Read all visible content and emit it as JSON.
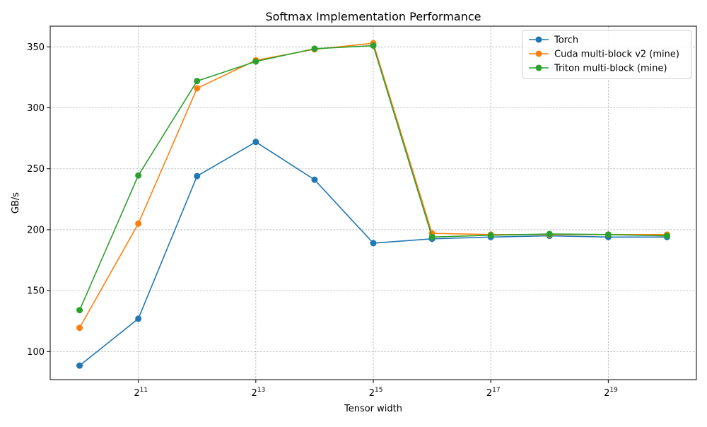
{
  "chart_data": {
    "type": "line",
    "title": "Softmax Implementation Performance",
    "xlabel": "Tensor width",
    "ylabel": "GB/s",
    "x_scale": "log2",
    "x": [
      1024,
      2048,
      4096,
      8192,
      16384,
      32768,
      65536,
      131072,
      262144,
      524288,
      1048576
    ],
    "xlim": [
      724,
      1482910
    ],
    "ylim": [
      77,
      367
    ],
    "x_ticks": [
      {
        "value": 2048,
        "base": "2",
        "exp": "11"
      },
      {
        "value": 8192,
        "base": "2",
        "exp": "13"
      },
      {
        "value": 32768,
        "base": "2",
        "exp": "15"
      },
      {
        "value": 131072,
        "base": "2",
        "exp": "17"
      },
      {
        "value": 524288,
        "base": "2",
        "exp": "19"
      }
    ],
    "y_ticks": [
      {
        "value": 100,
        "label": "100"
      },
      {
        "value": 150,
        "label": "150"
      },
      {
        "value": 200,
        "label": "200"
      },
      {
        "value": 250,
        "label": "250"
      },
      {
        "value": 300,
        "label": "300"
      },
      {
        "value": 350,
        "label": "350"
      }
    ],
    "grid": true,
    "legend_position": "top-right",
    "series": [
      {
        "name": "Torch",
        "color": "#1f77b4",
        "values": [
          88.5,
          127,
          244,
          272,
          241,
          189,
          192.5,
          194,
          195,
          194,
          194
        ]
      },
      {
        "name": "Cuda multi-block v2 (mine)",
        "color": "#ff7f0e",
        "values": [
          119.5,
          205,
          316,
          339,
          348,
          353,
          197,
          196,
          196,
          196,
          196
        ]
      },
      {
        "name": "Triton multi-block (mine)",
        "color": "#2ca02c",
        "values": [
          134,
          244.5,
          322,
          338,
          348.5,
          351,
          194,
          195.5,
          196.5,
          196,
          195
        ]
      }
    ]
  }
}
